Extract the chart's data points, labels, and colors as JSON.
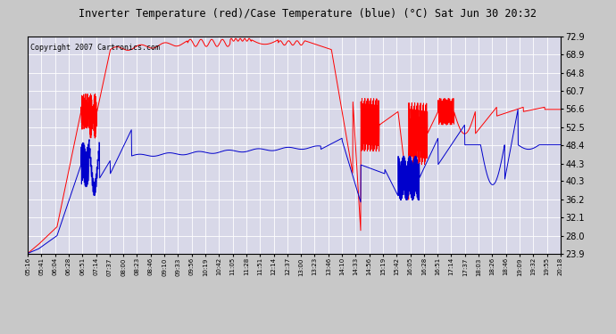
{
  "title": "Inverter Temperature (red)/Case Temperature (blue) (°C) Sat Jun 30 20:32",
  "copyright": "Copyright 2007 Cartronics.com",
  "yticks": [
    23.9,
    28.0,
    32.1,
    36.2,
    40.3,
    44.3,
    48.4,
    52.5,
    56.6,
    60.7,
    64.8,
    68.9,
    72.9
  ],
  "ylim": [
    23.9,
    72.9
  ],
  "xtick_labels": [
    "05:16",
    "05:41",
    "06:04",
    "06:28",
    "06:51",
    "07:14",
    "07:37",
    "08:00",
    "08:23",
    "08:46",
    "09:10",
    "09:33",
    "09:56",
    "10:19",
    "10:42",
    "11:05",
    "11:28",
    "11:51",
    "12:14",
    "12:37",
    "13:00",
    "13:23",
    "13:46",
    "14:10",
    "14:33",
    "14:56",
    "15:19",
    "15:42",
    "16:05",
    "16:28",
    "16:51",
    "17:14",
    "17:37",
    "18:03",
    "18:26",
    "18:46",
    "19:09",
    "19:32",
    "19:55",
    "20:18"
  ],
  "bg_color": "#c8c8c8",
  "plot_bg_color": "#d8d8e8",
  "grid_color": "#ffffff",
  "red_color": "#ff0000",
  "blue_color": "#0000cc",
  "title_color": "#000000",
  "copyright_color": "#000000"
}
